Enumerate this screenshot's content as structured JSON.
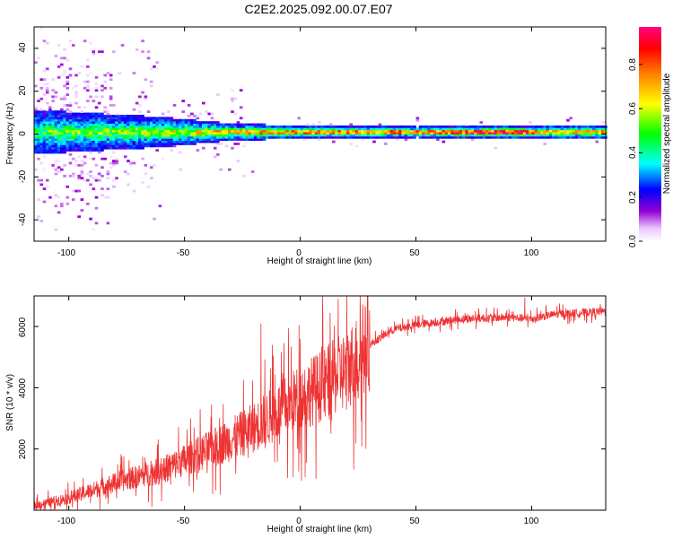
{
  "title": "C2E2.2025.092.00.07.E07",
  "chart_data": [
    {
      "type": "heatmap",
      "xlabel": "Height of straight line (km)",
      "ylabel": "Frequency (Hz)",
      "xlim": [
        -115,
        132
      ],
      "ylim": [
        -50,
        50
      ],
      "x_ticks": [
        "-100",
        "-50",
        "0",
        "50",
        "100"
      ],
      "y_ticks": [
        "-40",
        "-20",
        "0",
        "20",
        "40"
      ],
      "colorbar": {
        "label": "Normalized spectral amplitude",
        "range": [
          0,
          0.97
        ],
        "ticks": [
          "0.0",
          "0.2",
          "0.4",
          "0.6",
          "0.8"
        ],
        "colormap": "rainbow (white-violet-blue-cyan-green-yellow-orange-red-magenta)"
      },
      "description_of_values": {
        "center_frequency_hz": 0.5,
        "band_halfwidth_hz": [
          {
            "x": -110,
            "halfwidth": 10
          },
          {
            "x": -60,
            "halfwidth": 7
          },
          {
            "x": -30,
            "halfwidth": 4
          },
          {
            "x": 0,
            "halfwidth": 3
          },
          {
            "x": 50,
            "halfwidth": 2.5
          },
          {
            "x": 100,
            "halfwidth": 3
          },
          {
            "x": 130,
            "halfwidth": 3
          }
        ],
        "ridge_amplitude": [
          {
            "x": -110,
            "amp": 0.3
          },
          {
            "x": -60,
            "amp": 0.4
          },
          {
            "x": -30,
            "amp": 0.55
          },
          {
            "x": 0,
            "amp": 0.7
          },
          {
            "x": 50,
            "amp": 0.75
          },
          {
            "x": 95,
            "amp": 0.95
          },
          {
            "x": 105,
            "amp": 0.6
          },
          {
            "x": 130,
            "amp": 0.6
          }
        ]
      }
    },
    {
      "type": "line",
      "xlabel": "Height of straight line (km)",
      "ylabel": "SNR (10 * v/v)",
      "xlim": [
        -115,
        132
      ],
      "ylim": [
        0,
        7000
      ],
      "x_ticks": [
        "-100",
        "-50",
        "0",
        "50",
        "100"
      ],
      "y_ticks": [
        "2000",
        "4000",
        "6000"
      ],
      "color": "#ee3333",
      "series": [
        {
          "trend": [
            {
              "x": -115,
              "y": 150
            },
            {
              "x": -100,
              "y": 400
            },
            {
              "x": -80,
              "y": 900
            },
            {
              "x": -60,
              "y": 1300
            },
            {
              "x": -45,
              "y": 1800
            },
            {
              "x": -30,
              "y": 2300
            },
            {
              "x": -20,
              "y": 2700
            },
            {
              "x": -10,
              "y": 3200
            },
            {
              "x": 0,
              "y": 3700
            },
            {
              "x": 10,
              "y": 4100
            },
            {
              "x": 20,
              "y": 4600
            },
            {
              "x": 30,
              "y": 5400
            },
            {
              "x": 40,
              "y": 5900
            },
            {
              "x": 50,
              "y": 6050
            },
            {
              "x": 70,
              "y": 6250
            },
            {
              "x": 90,
              "y": 6300
            },
            {
              "x": 100,
              "y": 6250
            },
            {
              "x": 110,
              "y": 6400
            },
            {
              "x": 132,
              "y": 6500
            }
          ],
          "peaks": [
            {
              "x": -17,
              "y": 6100
            },
            {
              "x": -12,
              "y": 5400
            },
            {
              "x": 0,
              "y": 5600
            },
            {
              "x": 97,
              "y": 6950
            }
          ]
        }
      ]
    }
  ]
}
